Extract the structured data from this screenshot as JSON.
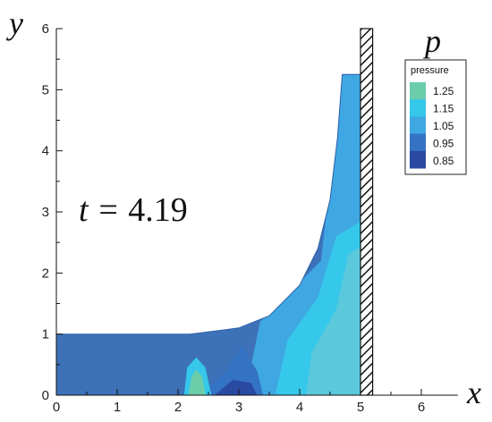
{
  "chart_data": {
    "type": "heatmap",
    "title": "",
    "xlabel": "x",
    "ylabel": "y",
    "xlim": [
      0,
      6.6
    ],
    "ylim": [
      0,
      6
    ],
    "x_ticks": [
      "0",
      "1",
      "2",
      "3",
      "4",
      "5",
      "6"
    ],
    "y_ticks": [
      "0",
      "1",
      "2",
      "3",
      "4",
      "5",
      "6"
    ],
    "annotation": {
      "time_prefix": "t = ",
      "time_value": "4.19"
    },
    "field_name": "p",
    "legend": {
      "title": "pressure",
      "levels": [
        "1.25",
        "1.15",
        "1.05",
        "0.95",
        "0.85"
      ],
      "colors": [
        "#6ccdaa",
        "#35c8ea",
        "#3fa7e2",
        "#3573c4",
        "#2a4aa2"
      ]
    },
    "wall": {
      "x_left": 5.0,
      "x_right": 5.2,
      "y_top": 6.0
    },
    "free_surface": [
      [
        0,
        1.0
      ],
      [
        2.2,
        1.0
      ],
      [
        3.0,
        1.1
      ],
      [
        3.5,
        1.3
      ],
      [
        4.0,
        1.8
      ],
      [
        4.3,
        2.4
      ],
      [
        4.5,
        3.2
      ],
      [
        4.62,
        4.2
      ],
      [
        4.7,
        5.25
      ],
      [
        4.95,
        5.25
      ],
      [
        5.0,
        5.25
      ]
    ],
    "grid": false,
    "legend_position": "top-right"
  }
}
